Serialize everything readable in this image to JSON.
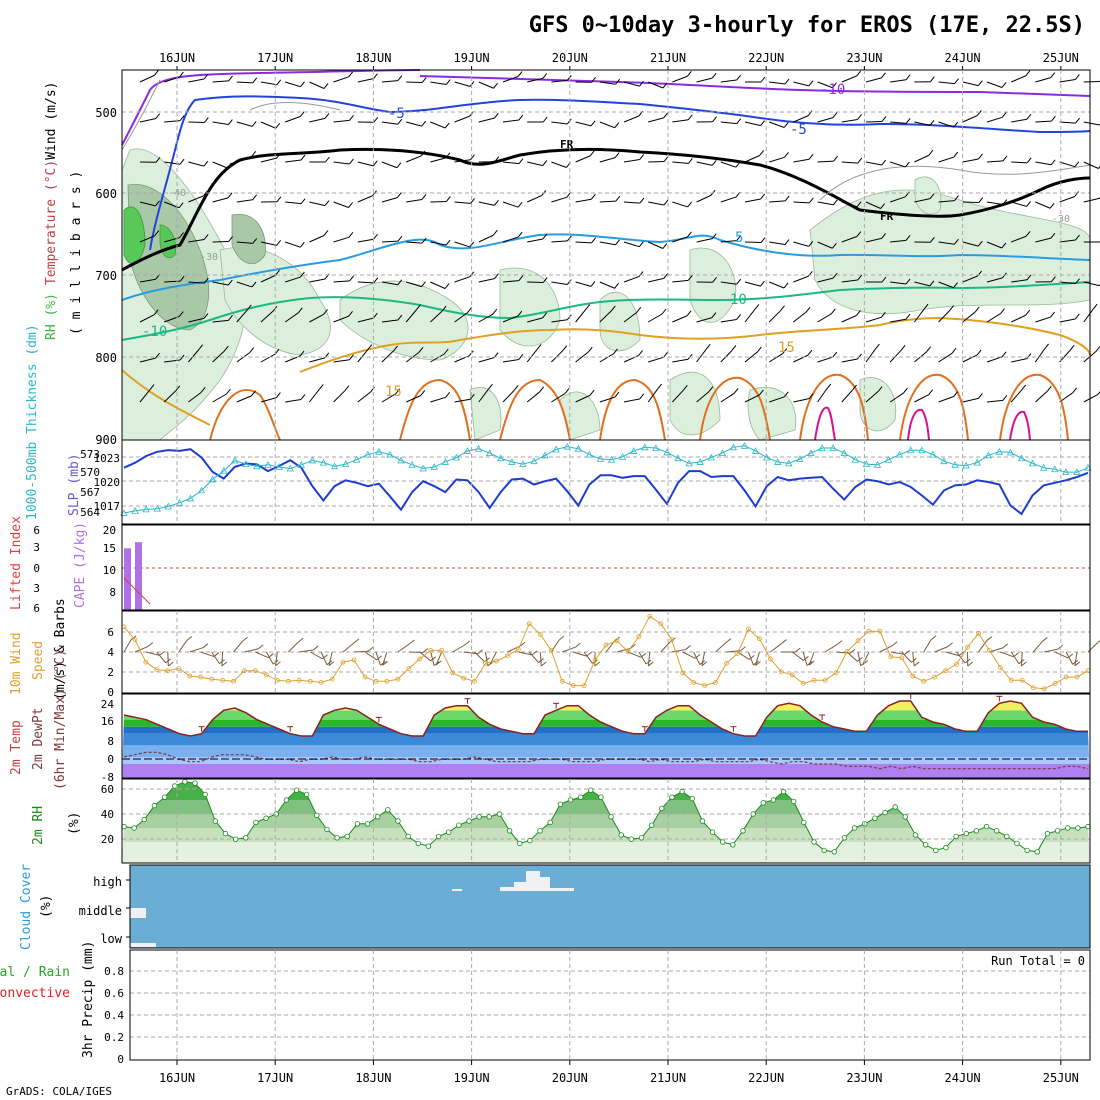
{
  "title": "GFS 0~10day 3-hourly for EROS (17E, 22.5S)",
  "credit": "GrADS: COLA/IGES",
  "run_total": "Run Total = 0",
  "date_labels": [
    "16JUN",
    "17JUN",
    "18JUN",
    "19JUN",
    "20JUN",
    "21JUN",
    "22JUN",
    "23JUN",
    "24JUN",
    "25JUN"
  ],
  "panels": {
    "upper": {
      "y_title_parts": [
        {
          "text": "Wind (m/s)",
          "color": "#000000"
        },
        {
          "text": "Temperature (°C)",
          "color": "#c04040"
        },
        {
          "text": "RH (%)",
          "color": "#3cb83c"
        }
      ],
      "y_unit": "( m i l l i b a r s )",
      "ticks": [
        "500",
        "600",
        "700",
        "800",
        "900"
      ],
      "contour_labels": [
        "-10",
        "-5",
        "FR",
        "-5",
        "FR",
        "5",
        "10",
        "-10",
        "15",
        "15",
        "-30",
        "-40",
        "-30"
      ]
    },
    "thickness": {
      "y_title_left": "1000-500mb Thickness (dm)",
      "y_title_right": "SLP (mb)",
      "left_ticks": [
        "573",
        "570",
        "567",
        "564"
      ],
      "right_ticks": [
        "1023",
        "1020",
        "1017"
      ]
    },
    "instability": {
      "y_title_left": "Lifted Index",
      "y_title_right": "CAPE (J/kg)",
      "left_ticks": [
        "6",
        "3",
        "0",
        "3",
        "6"
      ],
      "right_ticks": [
        "20",
        "15",
        "10",
        "8"
      ]
    },
    "wind10m": {
      "y_title": [
        "10m Wind",
        "Speed",
        "(m/s) & Barbs"
      ],
      "ticks": [
        "6",
        "4",
        "2",
        "0"
      ]
    },
    "temp2m": {
      "y_title": [
        "2m Temp",
        "2m DewPt",
        "(6hr Min/Max) (°C)"
      ],
      "ticks": [
        "24",
        "16",
        "8",
        "0",
        "-8"
      ]
    },
    "rh2m": {
      "y_title": [
        "2m RH",
        "(%)"
      ],
      "ticks": [
        "60",
        "40",
        "20"
      ]
    },
    "cloud": {
      "y_title": [
        "Cloud Cover",
        "(%)"
      ],
      "levels": [
        "high",
        "middle",
        "low"
      ]
    },
    "precip": {
      "y_title_parts": [
        {
          "text": "Total / Rain",
          "color": "#22aa22"
        },
        {
          "text": "Convective",
          "color": "#dd2222"
        }
      ],
      "y_unit": "3hr Precip (mm)",
      "ticks": [
        "0.8",
        "0.6",
        "0.4",
        "0.2",
        "0"
      ]
    }
  },
  "chart_data": [
    {
      "type": "line",
      "title": "1000-500mb Thickness (dm) / SLP (mb)",
      "x_step_hours": 3,
      "series": [
        {
          "name": "SLP (mb)",
          "color": "#1e3cd2",
          "values": [
            1021.2,
            1021.8,
            1022.6,
            1023.1,
            1023.3,
            1023.2,
            1023.4,
            1022.4,
            1020.7,
            1019.9,
            1021.3,
            1021.7,
            1021.6,
            1020.8,
            1021.4,
            1022.1,
            1021.2,
            1019.0,
            1017.3,
            1019.0,
            1019.7,
            1019.4,
            1019.0,
            1019.3,
            1017.8,
            1016.2,
            1018.3,
            1019.6,
            1019.0,
            1018.3,
            1019.8,
            1019.7,
            1018.3,
            1016.4,
            1018.3,
            1019.8,
            1019.9,
            1019.2,
            1019.6,
            1019.9,
            1018.4,
            1016.7,
            1019.2,
            1020.3,
            1020.3,
            1020.0,
            1020.2,
            1020.2,
            1018.6,
            1016.9,
            1019.4,
            1020.8,
            1020.8,
            1020.1,
            1020.2,
            1020.2,
            1018.5,
            1016.6,
            1019.0,
            1020.1,
            1019.7,
            1019.9,
            1020.0,
            1020.1,
            1018.7,
            1017.4,
            1018.9,
            1019.8,
            1019.6,
            1019.2,
            1019.5,
            1018.9,
            1017.9,
            1016.8,
            1018.5,
            1019.1,
            1019.2,
            1019.7,
            1019.5,
            1019.2,
            1016.7,
            1015.7,
            1017.9,
            1019.1,
            1019.4,
            1019.7,
            1020.1,
            1020.6
          ]
        },
        {
          "name": "1000-500mb Thickness (dm)",
          "color": "#2ab8c8",
          "values": [
            564.0,
            564.3,
            564.5,
            564.6,
            564.9,
            565.4,
            566.0,
            567.1,
            568.6,
            569.8,
            571.2,
            570.7,
            570.4,
            570.6,
            570.3,
            570.1,
            570.6,
            571.2,
            570.9,
            570.4,
            570.7,
            571.3,
            572.0,
            572.4,
            572.0,
            571.2,
            570.6,
            570.1,
            570.3,
            571.0,
            571.6,
            572.5,
            572.8,
            572.2,
            571.5,
            571.0,
            570.7,
            571.1,
            571.9,
            572.7,
            573.1,
            572.8,
            572.0,
            571.4,
            571.3,
            571.7,
            572.5,
            573.0,
            572.9,
            572.3,
            571.5,
            570.8,
            571.0,
            571.6,
            572.2,
            573.0,
            573.2,
            572.5,
            571.6,
            571.0,
            570.8,
            571.4,
            572.2,
            572.9,
            572.9,
            572.2,
            571.3,
            570.7,
            570.6,
            571.3,
            572.0,
            572.6,
            572.6,
            572.0,
            571.1,
            570.6,
            570.5,
            570.9,
            571.9,
            572.4,
            572.3,
            571.5,
            570.8,
            570.2,
            570.0,
            569.6,
            569.6,
            570.2
          ]
        }
      ],
      "ylim_slp": [
        1014.5,
        1024.5
      ],
      "ylim_thickness": [
        562.5,
        574
      ]
    },
    {
      "type": "bar",
      "title": "CAPE (J/kg)",
      "categories": [
        "t0",
        "t1"
      ],
      "values": [
        18,
        19
      ],
      "ylim": [
        8,
        20
      ]
    },
    {
      "type": "line",
      "title": "10m Wind Speed (m/s)",
      "x_step_hours": 3,
      "values": [
        6.1,
        4.9,
        2.8,
        2.1,
        2.0,
        2.2,
        1.5,
        1.4,
        1.2,
        1.1,
        1.0,
        2.0,
        2.0,
        1.6,
        1.1,
        1.0,
        1.1,
        1.0,
        0.9,
        1.2,
        2.8,
        3.0,
        1.4,
        1.0,
        1.0,
        1.2,
        2.2,
        3.1,
        3.9,
        3.9,
        1.8,
        1.3,
        1.0,
        2.7,
        2.9,
        3.4,
        4.0,
        6.4,
        5.4,
        3.9,
        1.0,
        0.6,
        0.6,
        3.0,
        4.4,
        4.8,
        3.8,
        5.2,
        7.1,
        6.4,
        4.9,
        1.8,
        0.9,
        0.6,
        0.9,
        2.7,
        3.6,
        5.9,
        5.0,
        3.1,
        1.9,
        1.6,
        0.8,
        1.1,
        1.1,
        1.8,
        3.8,
        4.8,
        5.7,
        5.7,
        3.3,
        3.2,
        1.5,
        1.0,
        1.4,
        2.0,
        2.6,
        4.2,
        5.5,
        3.9,
        2.3,
        1.1,
        1.1,
        0.4,
        0.3,
        0.8,
        1.4,
        1.4,
        2.0
      ]
    },
    {
      "type": "area",
      "title": "2m Temp (°C)",
      "x_step_hours": 3,
      "series": [
        {
          "name": "2m Temp",
          "values": [
            18,
            17,
            16,
            14,
            12,
            10,
            9,
            10,
            16,
            20,
            21,
            19,
            16,
            14,
            12,
            10,
            9,
            9,
            18,
            20,
            21,
            20,
            17,
            14,
            12,
            10,
            9,
            9,
            18,
            21,
            22,
            22,
            17,
            14,
            12,
            11,
            10,
            10,
            18,
            20,
            22,
            22,
            18,
            15,
            13,
            11,
            10,
            10,
            17,
            20,
            22,
            22,
            18,
            15,
            12,
            10,
            9,
            9,
            17,
            22,
            23,
            22,
            18,
            15,
            13,
            12,
            11,
            11,
            18,
            22,
            24,
            24,
            17,
            15,
            14,
            12,
            11,
            11,
            19,
            23,
            24,
            23,
            17,
            15,
            14,
            12,
            11,
            11
          ]
        },
        {
          "name": "2m DewPt",
          "values": [
            0,
            1,
            2,
            2,
            1,
            -1,
            -2,
            -2,
            0,
            1,
            1,
            1,
            0,
            -1,
            -1,
            -1,
            -2,
            -1,
            -1,
            0,
            -1,
            -1,
            0,
            -1,
            -1,
            -1,
            -1,
            -2,
            -2,
            -1,
            -1,
            -1,
            0,
            -1,
            -2,
            -2,
            -2,
            -2,
            -1,
            -1,
            -1,
            -2,
            -2,
            -2,
            -1,
            -1,
            -1,
            -1,
            -2,
            -1,
            -2,
            -2,
            -2,
            -1,
            -2,
            -2,
            -2,
            -2,
            -1,
            -2,
            -3,
            -2,
            -2,
            -3,
            -3,
            -3,
            -4,
            -4,
            -4,
            -5,
            -4,
            -5,
            -4,
            -5,
            -5,
            -5,
            -5,
            -5,
            -5,
            -5,
            -5,
            -5,
            -5,
            -5,
            -5,
            -5,
            -4,
            -4,
            -5
          ]
        }
      ],
      "ylim": [
        -9,
        27
      ]
    },
    {
      "type": "area",
      "title": "2m RH (%)",
      "x_step_hours": 3,
      "values": [
        31,
        30,
        36,
        46,
        52,
        60,
        63,
        62,
        54,
        35,
        26,
        22,
        23,
        34,
        37,
        40,
        50,
        57,
        54,
        39,
        29,
        23,
        24,
        33,
        33,
        38,
        43,
        35,
        24,
        19,
        17,
        24,
        27,
        32,
        35,
        38,
        38,
        40,
        28,
        19,
        21,
        28,
        34,
        47,
        50,
        52,
        57,
        52,
        38,
        25,
        22,
        23,
        32,
        44,
        52,
        56,
        51,
        35,
        27,
        20,
        18,
        28,
        40,
        48,
        50,
        56,
        49,
        34,
        20,
        14,
        13,
        23,
        30,
        33,
        37,
        41,
        45,
        38,
        25,
        18,
        14,
        16,
        24,
        26,
        28,
        31,
        28,
        24,
        19,
        14,
        13,
        26,
        28,
        30,
        30,
        31
      ]
    },
    {
      "type": "bar",
      "title": "Cloud Cover (%)",
      "series": [
        {
          "name": "high",
          "values": "mostly 0, brief 10-60% near 19-20JUN"
        },
        {
          "name": "middle",
          "values": "small amount at start of 16JUN"
        },
        {
          "name": "low",
          "values": "small amount at start of 16JUN"
        }
      ]
    },
    {
      "type": "bar",
      "title": "3hr Precip (mm)",
      "values": [
        0
      ],
      "ylim": [
        0,
        0.95
      ],
      "run_total": 0
    }
  ]
}
